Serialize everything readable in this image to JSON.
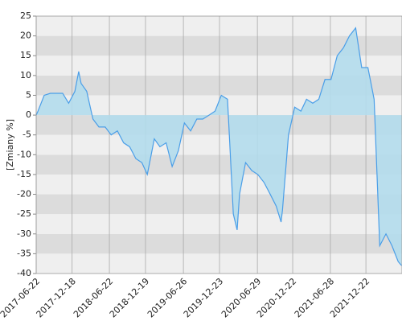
{
  "chart_data": {
    "type": "area",
    "y_label": "[Zmiany %]",
    "series": [
      {
        "name": null,
        "color": "#4a9ee8",
        "fill": "#b3dcec",
        "x": [
          "2017-06-22",
          "2017-07-01",
          "2017-08-01",
          "2017-09-01",
          "2017-10-01",
          "2017-11-01",
          "2017-12-01",
          "2018-01-01",
          "2018-01-20",
          "2018-02-01",
          "2018-03-01",
          "2018-04-01",
          "2018-05-01",
          "2018-06-01",
          "2018-07-01",
          "2018-08-01",
          "2018-09-01",
          "2018-10-01",
          "2018-11-01",
          "2018-12-01",
          "2018-12-28",
          "2019-01-01",
          "2019-02-01",
          "2019-03-01",
          "2019-04-01",
          "2019-05-01",
          "2019-06-01",
          "2019-07-01",
          "2019-08-01",
          "2019-09-01",
          "2019-10-01",
          "2019-11-01",
          "2019-12-01",
          "2020-01-01",
          "2020-02-01",
          "2020-03-01",
          "2020-03-20",
          "2020-04-01",
          "2020-05-01",
          "2020-06-01",
          "2020-07-01",
          "2020-08-01",
          "2020-09-01",
          "2020-10-01",
          "2020-10-25",
          "2020-11-01",
          "2020-12-01",
          "2021-01-01",
          "2021-02-01",
          "2021-03-01",
          "2021-04-01",
          "2021-05-01",
          "2021-06-01",
          "2021-07-01",
          "2021-08-01",
          "2021-09-01",
          "2021-10-01",
          "2021-11-01",
          "2021-12-01",
          "2022-01-01",
          "2022-02-01",
          "2022-03-01",
          "2022-04-01",
          "2022-05-01",
          "2022-06-01",
          "2022-06-18"
        ],
        "values": [
          0,
          1,
          5,
          5.5,
          5.5,
          5.5,
          3,
          6,
          11,
          8,
          6,
          -1,
          -3,
          -3,
          -5,
          -4,
          -7,
          -8,
          -11,
          -12,
          -15,
          -14,
          -6,
          -8,
          -7,
          -13,
          -9,
          -2,
          -4,
          -1,
          -1,
          0,
          1,
          5,
          4,
          -25,
          -29,
          -20,
          -12,
          -14,
          -15,
          -17,
          -20,
          -23,
          -27,
          -24,
          -5,
          2,
          1,
          4,
          3,
          4,
          9,
          9,
          15,
          17,
          20,
          22,
          12,
          12,
          4,
          -33,
          -30,
          -33,
          -37,
          -38
        ]
      }
    ],
    "xlim": [
      "2017-06-22",
      "2022-06-20"
    ],
    "xticks": [
      "2017-06-22",
      "2017-12-18",
      "2018-06-22",
      "2018-12-19",
      "2019-06-26",
      "2019-12-23",
      "2020-06-29",
      "2020-12-22",
      "2021-06-28",
      "2021-12-22"
    ],
    "ylim": [
      -40,
      25
    ],
    "yticks": [
      -40,
      -35,
      -30,
      -25,
      -20,
      -15,
      -10,
      -5,
      0,
      5,
      10,
      15,
      20,
      25
    ],
    "grid": true
  }
}
